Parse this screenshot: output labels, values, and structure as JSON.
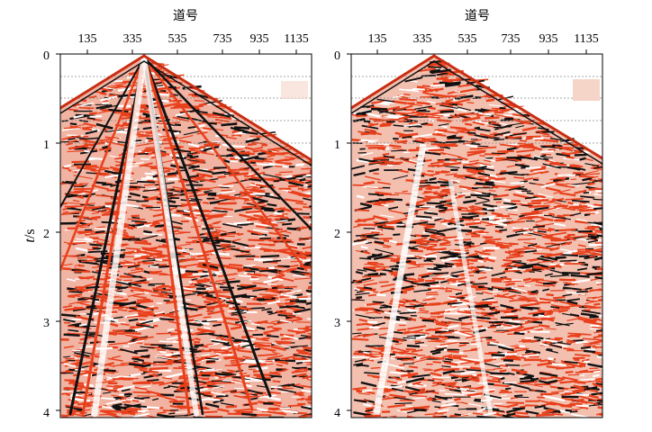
{
  "panels": [
    {
      "id": "left",
      "title": "道号",
      "x_ticks": [
        "135",
        "335",
        "535",
        "735",
        "935",
        "1135"
      ],
      "y_ticks": [
        "0",
        "1",
        "2",
        "3",
        "4"
      ],
      "ylabel_italic": "t",
      "ylabel_rest": "/s"
    },
    {
      "id": "right",
      "title": "道号",
      "x_ticks": [
        "135",
        "335",
        "535",
        "735",
        "935",
        "1135"
      ],
      "y_ticks": [
        "0",
        "1",
        "2",
        "3",
        "4"
      ]
    }
  ],
  "colors": {
    "positive": "#e8401c",
    "negative": "#111111",
    "background": "#ffffff",
    "guide": "#888888"
  }
}
